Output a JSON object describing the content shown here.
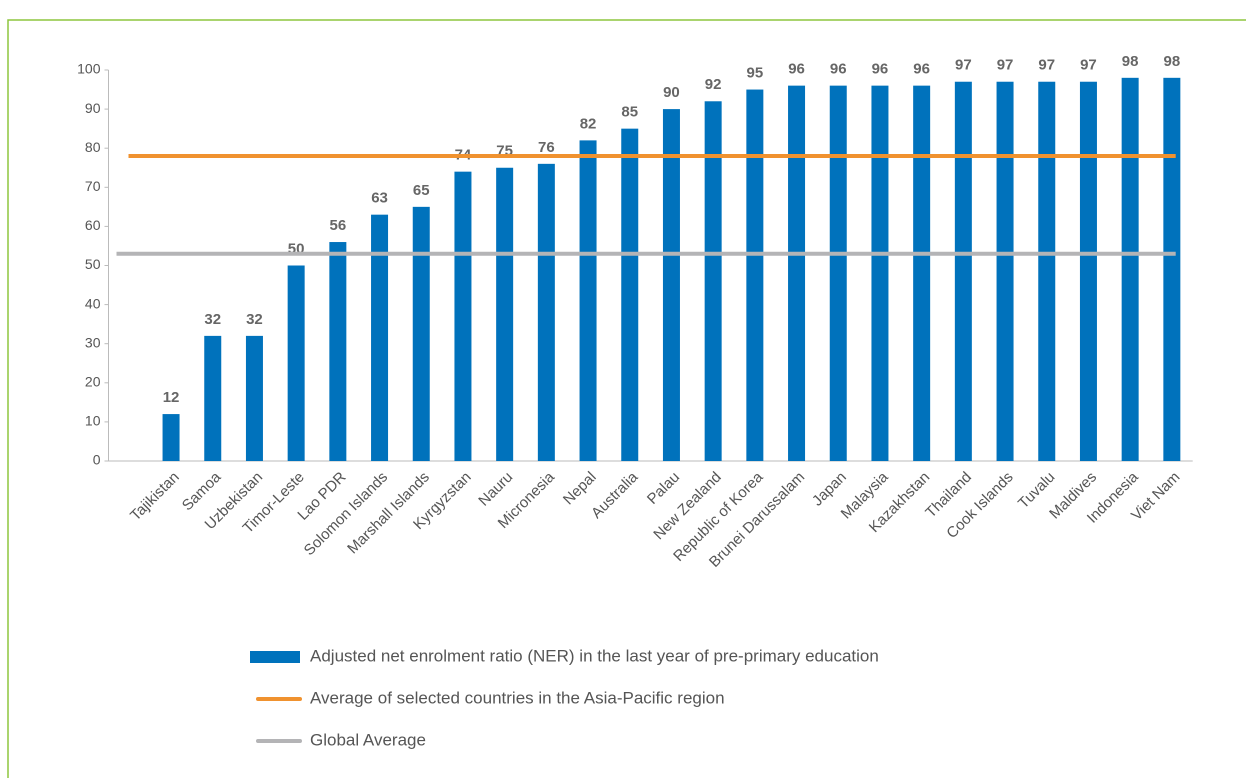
{
  "chart_data": {
    "type": "bar",
    "categories": [
      null,
      "Tajikistan",
      "Samoa",
      "Uzbekistan",
      "Timor-Leste",
      "Lao PDR",
      "Solomon Islands",
      "Marshall Islands",
      "Kyrgyzstan",
      "Nauru",
      "Micronesia",
      "Nepal",
      "Australia",
      "Palau",
      "New Zealand",
      "Republic of Korea",
      "Brunei Darussalam",
      "Japan",
      "Malaysia",
      "Kazakhstan",
      "Thailand",
      "Cook Islands",
      "Tuvalu",
      "Maldives",
      "Indonesia",
      "Viet Nam"
    ],
    "series": [
      {
        "name": "Adjusted net enrolment ratio (NER) in the last year of pre-primary education",
        "color": "#0072bc",
        "values": [
          null,
          12,
          32,
          32,
          50,
          56,
          63,
          65,
          74,
          75,
          76,
          82,
          85,
          90,
          92,
          95,
          96,
          96,
          96,
          96,
          97,
          97,
          97,
          97,
          98,
          98
        ]
      }
    ],
    "reference_lines": [
      {
        "name": "Average of selected countries in the Asia-Pacific region",
        "color": "#f0922f",
        "value": 78
      },
      {
        "name": "Global Average",
        "color": "#b4b4b6",
        "value": 53
      }
    ],
    "ylim": [
      0,
      100
    ],
    "yticks": [
      0,
      10,
      20,
      30,
      40,
      50,
      60,
      70,
      80,
      90,
      100
    ],
    "data_labels": true
  }
}
